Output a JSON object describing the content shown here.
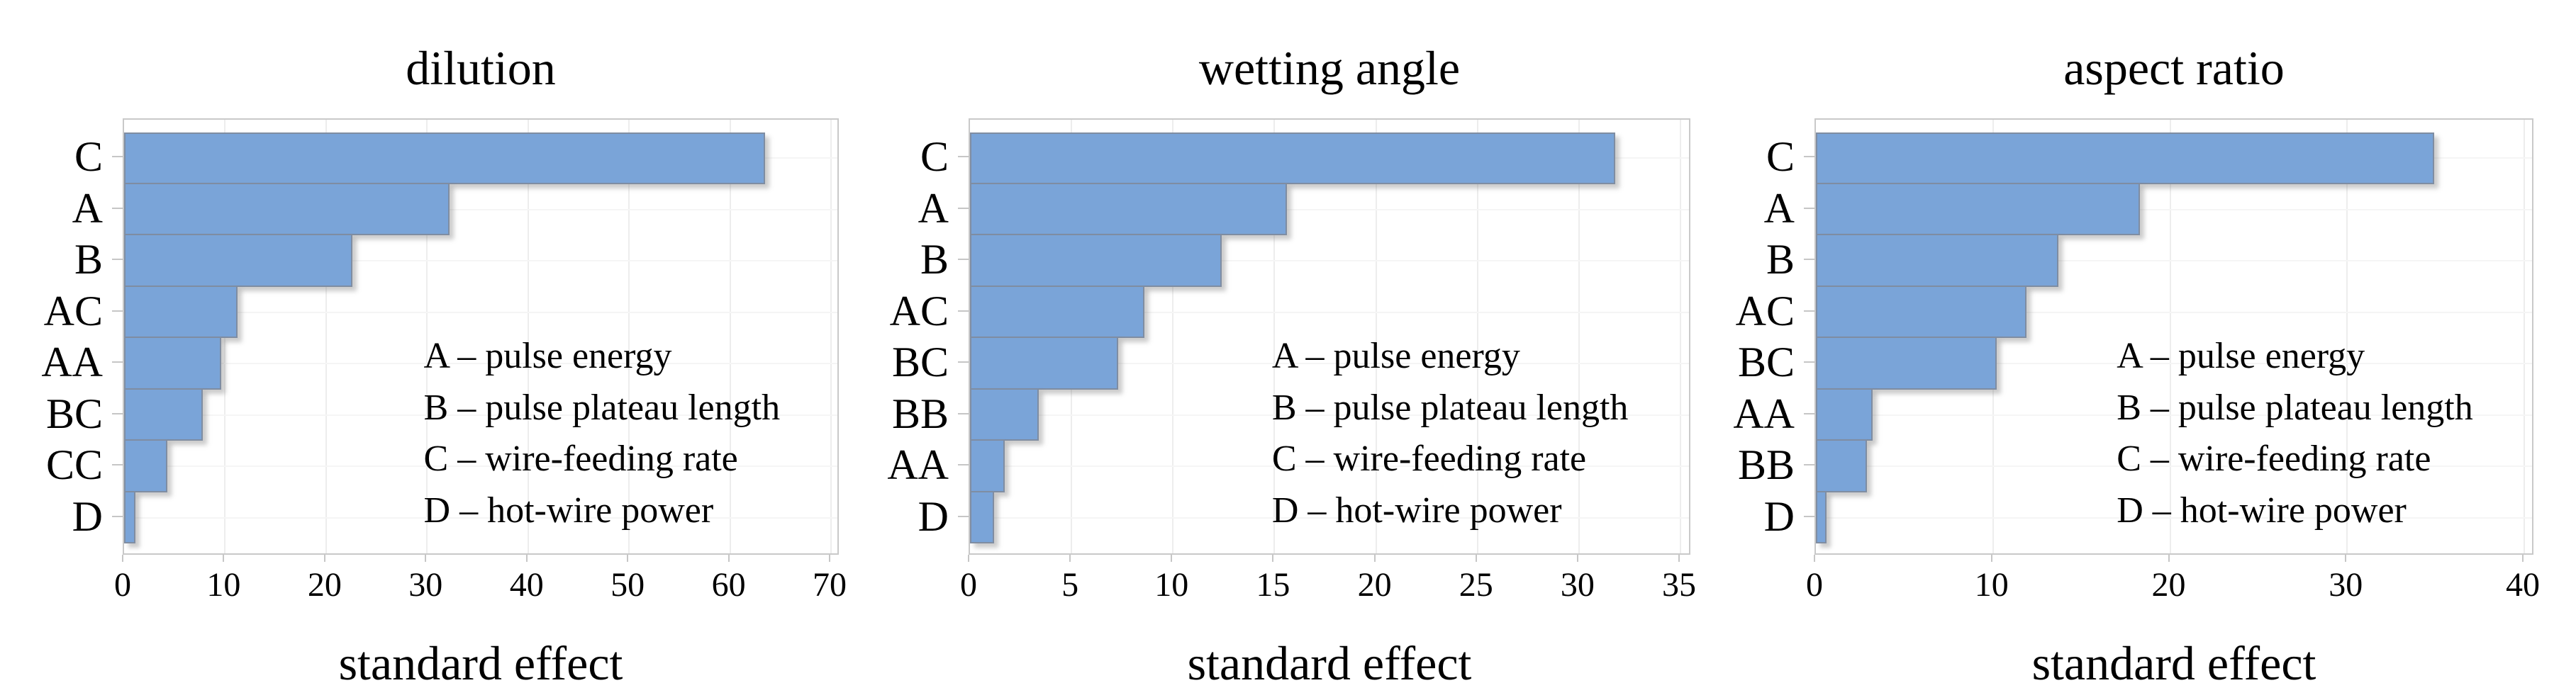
{
  "figure": {
    "background": "#FFFFFF"
  },
  "styles": {
    "bar_fill": "#7AA4D8",
    "bar_border": "#7F8DA2",
    "plot_border": "#C9C9C9",
    "grid_vertical": "#EDEDED",
    "grid_horizontal": "#F5F5F5",
    "tick_mark": "#C6C6C6",
    "text": "#000000"
  },
  "legend": {
    "position": "inside lower-right of plot",
    "lines": [
      "A – pulse energy",
      "B – pulse plateau length",
      "C – wire-feeding rate",
      "D – hot-wire power"
    ]
  },
  "chart_data": [
    {
      "type": "bar",
      "orientation": "horizontal",
      "title": "dilution",
      "xlabel": "standard effect",
      "ylabel": "",
      "categories": [
        "C",
        "A",
        "B",
        "AC",
        "AA",
        "BC",
        "CC",
        "D"
      ],
      "values": [
        63.5,
        32.2,
        22.6,
        11.2,
        9.6,
        7.8,
        4.3,
        1.1
      ],
      "xticks": [
        0,
        10,
        20,
        30,
        40,
        50,
        60,
        70
      ],
      "xlim": [
        0,
        70.9
      ],
      "grid": true,
      "legend_position": "inside lower-right",
      "annotations": [
        "A – pulse energy",
        "B – pulse plateau length",
        "C – wire-feeding rate",
        "D – hot-wire power"
      ]
    },
    {
      "type": "bar",
      "orientation": "horizontal",
      "title": "wetting angle",
      "xlabel": "standard effect",
      "ylabel": "",
      "categories": [
        "C",
        "A",
        "B",
        "AC",
        "BC",
        "BB",
        "AA",
        "D"
      ],
      "values": [
        31.8,
        15.6,
        12.4,
        8.6,
        7.3,
        3.4,
        1.7,
        1.2
      ],
      "xticks": [
        0,
        5,
        10,
        15,
        20,
        25,
        30,
        35
      ],
      "xlim": [
        0,
        35.6
      ],
      "grid": true,
      "legend_position": "inside lower-right",
      "annotations": [
        "A – pulse energy",
        "B – pulse plateau length",
        "C – wire-feeding rate",
        "D – hot-wire power"
      ]
    },
    {
      "type": "bar",
      "orientation": "horizontal",
      "title": "aspect ratio",
      "xlabel": "standard effect",
      "ylabel": "",
      "categories": [
        "C",
        "A",
        "B",
        "AC",
        "BC",
        "AA",
        "BB",
        "D"
      ],
      "values": [
        34.9,
        18.3,
        13.7,
        11.9,
        10.2,
        3.2,
        2.9,
        0.6
      ],
      "xticks": [
        0,
        10,
        20,
        30,
        40
      ],
      "xlim": [
        0,
        40.6
      ],
      "grid": true,
      "legend_position": "inside lower-right",
      "annotations": [
        "A – pulse energy",
        "B – pulse plateau length",
        "C – wire-feeding rate",
        "D – hot-wire power"
      ]
    }
  ]
}
